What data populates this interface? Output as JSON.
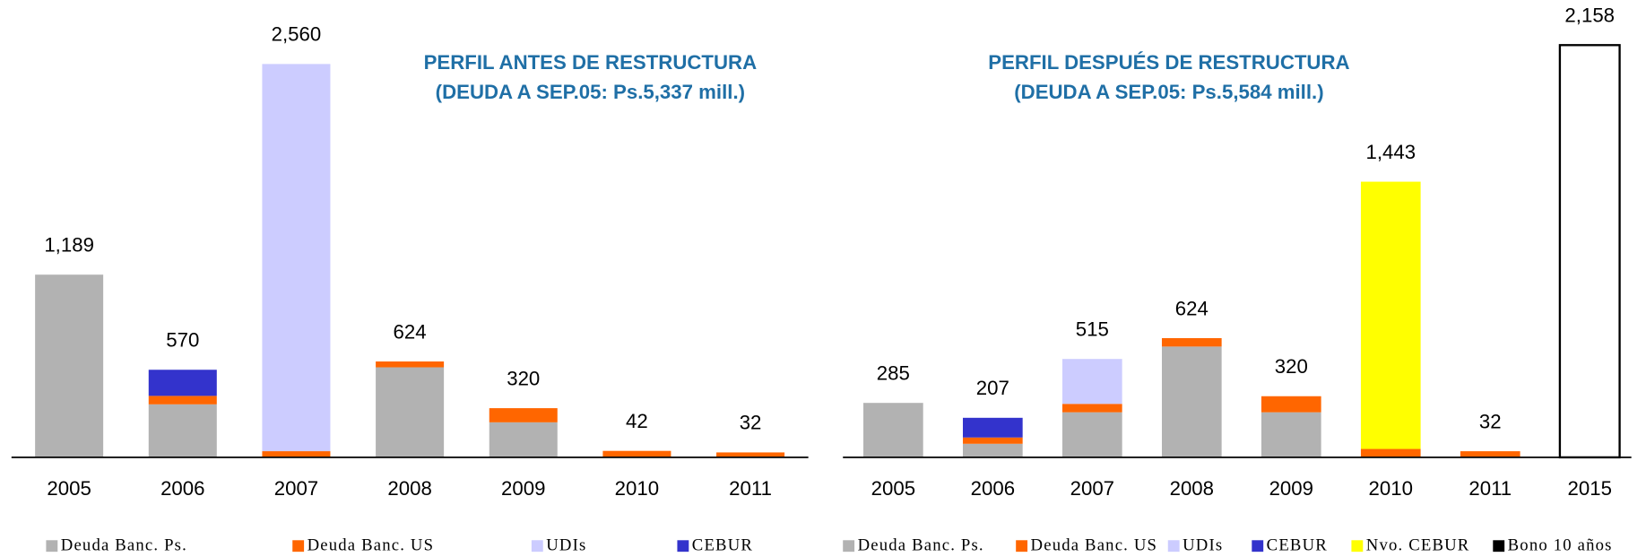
{
  "chart_data": [
    {
      "type": "bar",
      "stacked": true,
      "title": "PERFIL ANTES DE RESTRUCTURA",
      "subtitle": "(DEUDA A SEP.05: Ps.5,337 mill.)",
      "categories": [
        "2005",
        "2006",
        "2007",
        "2008",
        "2009",
        "2010",
        "2011"
      ],
      "series": [
        {
          "name": "Deuda Banc. Ps.",
          "color": "#b2b2b2",
          "values": [
            1189,
            345,
            null,
            586,
            228,
            null,
            null
          ]
        },
        {
          "name": "Deuda Banc. US",
          "color": "#ff6600",
          "values": [
            null,
            55,
            40,
            38,
            92,
            42,
            32
          ]
        },
        {
          "name": "UDIs",
          "color": "#ccccff",
          "values": [
            null,
            null,
            2520,
            null,
            null,
            null,
            null
          ]
        },
        {
          "name": "CEBUR",
          "color": "#3333cc",
          "values": [
            null,
            170,
            null,
            null,
            null,
            null,
            null
          ]
        }
      ],
      "totals": [
        1189,
        570,
        2560,
        624,
        320,
        42,
        32
      ],
      "total_labels": [
        "1,189",
        "570",
        "2,560",
        "624",
        "320",
        "42",
        "32"
      ]
    },
    {
      "type": "bar",
      "stacked": true,
      "title": "PERFIL DESPUÉS DE RESTRUCTURA",
      "subtitle": "(DEUDA A SEP.05: Ps.5,584 mill.)",
      "categories": [
        "2005",
        "2006",
        "2007",
        "2008",
        "2009",
        "2010",
        "2011",
        "2015"
      ],
      "series": [
        {
          "name": "Deuda Banc. Ps.",
          "color": "#b2b2b2",
          "values": [
            285,
            71,
            236,
            580,
            236,
            null,
            null,
            null
          ]
        },
        {
          "name": "Deuda Banc. US",
          "color": "#ff6600",
          "values": [
            null,
            33,
            44,
            44,
            84,
            44,
            32,
            null
          ]
        },
        {
          "name": "UDIs",
          "color": "#ccccff",
          "values": [
            null,
            null,
            235,
            null,
            null,
            null,
            null,
            null
          ]
        },
        {
          "name": "CEBUR",
          "color": "#3333cc",
          "values": [
            null,
            103,
            null,
            null,
            null,
            null,
            null,
            null
          ]
        },
        {
          "name": "Nvo. CEBUR",
          "color": "#ffff00",
          "values": [
            null,
            null,
            null,
            null,
            null,
            1399,
            null,
            null
          ]
        },
        {
          "name": "Bono 10 años",
          "color": "#000000",
          "fill": "#ffffff",
          "values": [
            null,
            null,
            null,
            null,
            null,
            null,
            null,
            2158
          ]
        }
      ],
      "totals": [
        285,
        207,
        515,
        624,
        320,
        1443,
        32,
        2158
      ],
      "total_labels": [
        "285",
        "207",
        "515",
        "624",
        "320",
        "1,443",
        "32",
        "2,158"
      ]
    }
  ]
}
